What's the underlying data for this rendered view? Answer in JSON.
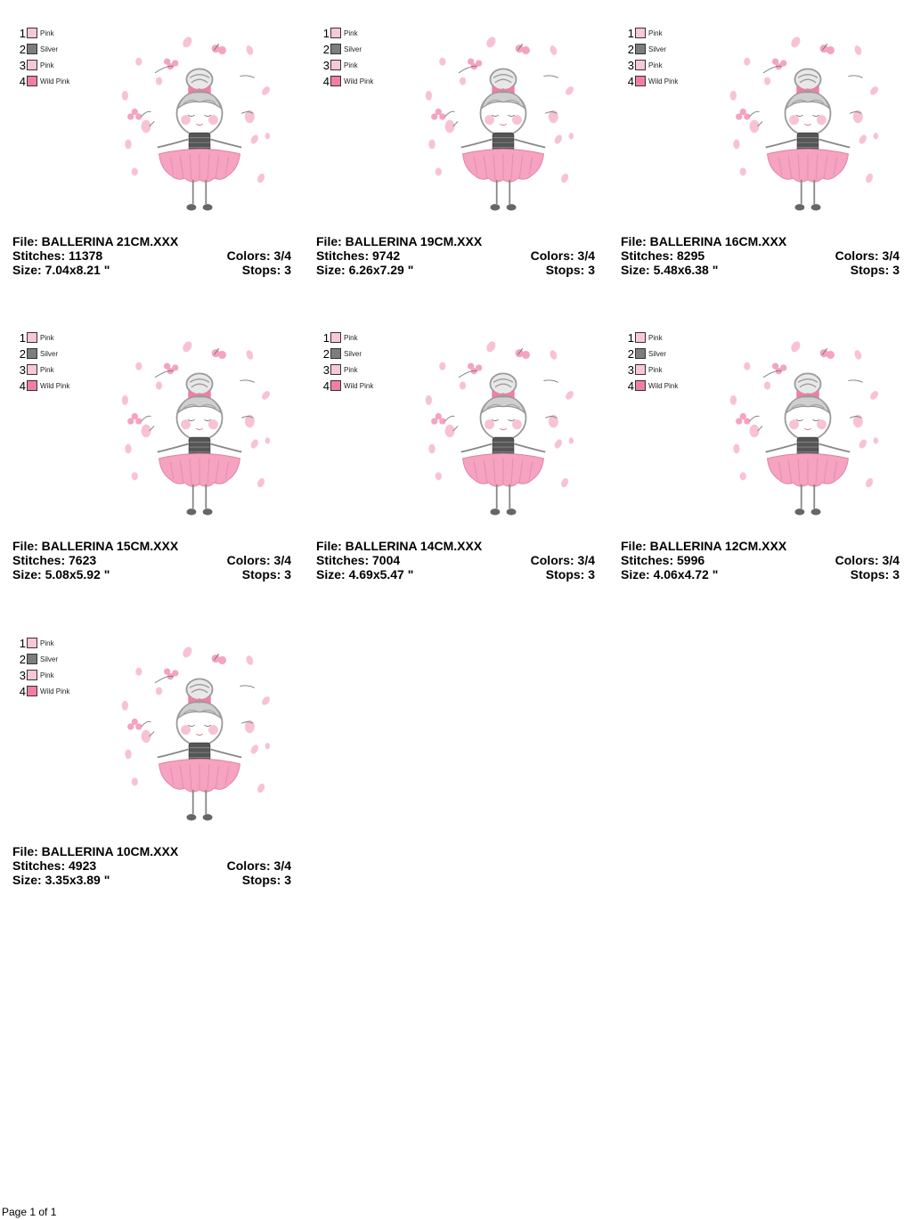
{
  "colors": {
    "pink": "#f9c8d6",
    "silver": "#7d7d7d",
    "wild_pink": "#f07fa4",
    "tutu": "#f5a3c0",
    "petal": "#f7c3d3",
    "hair": "#9a9a9a"
  },
  "legend": [
    {
      "num": "1",
      "name": "Pink",
      "color": "#f9c8d6"
    },
    {
      "num": "2",
      "name": "Silver",
      "color": "#7d7d7d"
    },
    {
      "num": "3",
      "name": "Pink",
      "color": "#f9c8d6"
    },
    {
      "num": "4",
      "name": "Wild Pink",
      "color": "#f07fa4"
    }
  ],
  "designs": [
    {
      "file": "File: BALLERINA 21CM.XXX",
      "stitches": "Stitches: 11378",
      "size": "Size: 7.04x8.21 \"",
      "colors": "Colors: 3/4",
      "stops": "Stops: 3"
    },
    {
      "file": "File: BALLERINA 19CM.XXX",
      "stitches": "Stitches: 9742",
      "size": "Size: 6.26x7.29 \"",
      "colors": "Colors: 3/4",
      "stops": "Stops: 3"
    },
    {
      "file": "File: BALLERINA 16CM.XXX",
      "stitches": "Stitches: 8295",
      "size": "Size: 5.48x6.38 \"",
      "colors": "Colors: 3/4",
      "stops": "Stops: 3"
    },
    {
      "file": "File: BALLERINA 15CM.XXX",
      "stitches": "Stitches: 7623",
      "size": "Size: 5.08x5.92 \"",
      "colors": "Colors: 3/4",
      "stops": "Stops: 3"
    },
    {
      "file": "File: BALLERINA 14CM.XXX",
      "stitches": "Stitches: 7004",
      "size": "Size: 4.69x5.47 \"",
      "colors": "Colors: 3/4",
      "stops": "Stops: 3"
    },
    {
      "file": "File: BALLERINA 12CM.XXX",
      "stitches": "Stitches: 5996",
      "size": "Size: 4.06x4.72 \"",
      "colors": "Colors: 3/4",
      "stops": "Stops: 3"
    },
    {
      "file": "File: BALLERINA 10CM.XXX",
      "stitches": "Stitches: 4923",
      "size": "Size: 3.35x3.89 \"",
      "colors": "Colors: 3/4",
      "stops": "Stops: 3"
    }
  ],
  "footer": "Page 1 of 1"
}
